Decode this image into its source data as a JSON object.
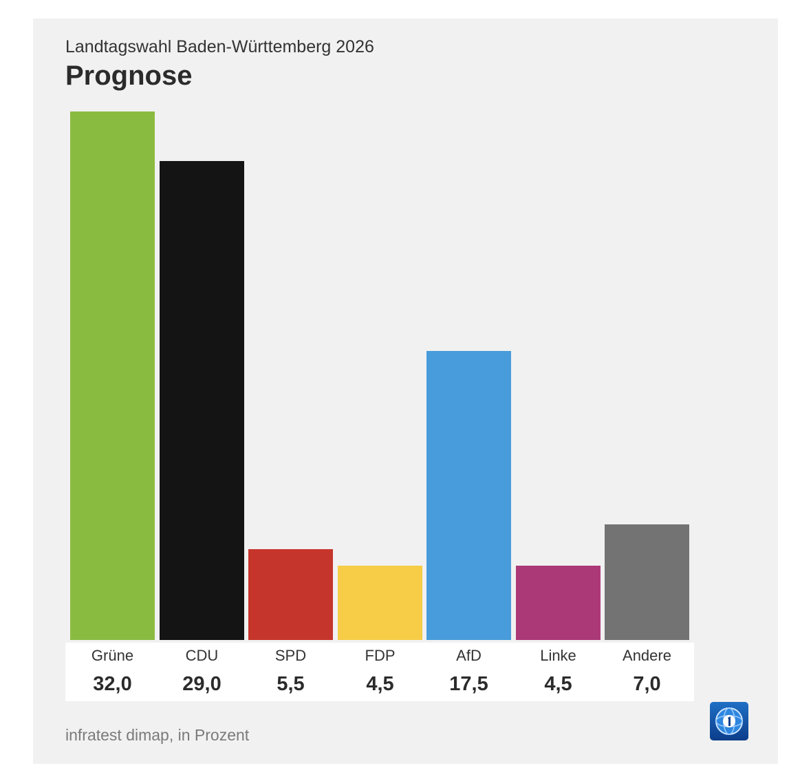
{
  "header": {
    "subtitle": "Landtagswahl Baden-Württemberg 2026",
    "title": "Prognose"
  },
  "footer": {
    "source": "infratest dimap, in Prozent"
  },
  "logo": {
    "icon": "tagesschau-logo-icon",
    "color": "#1f6fc5"
  },
  "chart_data": {
    "type": "bar",
    "title": "Prognose",
    "subtitle": "Landtagswahl Baden-Württemberg 2026",
    "categories": [
      "Grüne",
      "CDU",
      "SPD",
      "FDP",
      "AfD",
      "Linke",
      "Andere"
    ],
    "values": [
      32.0,
      29.0,
      5.5,
      4.5,
      17.5,
      4.5,
      7.0
    ],
    "value_labels": [
      "32,0",
      "29,0",
      "5,5",
      "4,5",
      "17,5",
      "4,5",
      "7,0"
    ],
    "colors": [
      "#8abb41",
      "#141414",
      "#c6352c",
      "#f7cd48",
      "#489cdb",
      "#ac3977",
      "#737374"
    ],
    "xlabel": "",
    "ylabel": "",
    "ylim": [
      0,
      32
    ],
    "grid": false,
    "legend": "none",
    "source": "infratest dimap, in Prozent"
  }
}
